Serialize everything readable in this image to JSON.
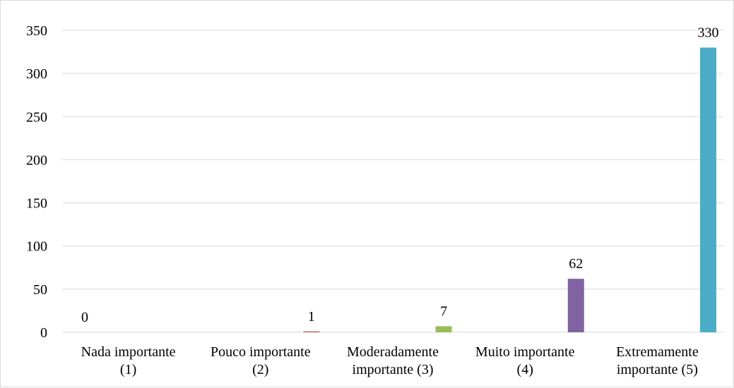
{
  "chart_data": {
    "type": "bar",
    "categories": [
      [
        "Nada importante",
        "(1)"
      ],
      [
        "Pouco importante",
        "(2)"
      ],
      [
        "Moderadamente",
        "importante (3)"
      ],
      [
        "Muito importante",
        "(4)"
      ],
      [
        "Extremamente",
        "importante (5)"
      ]
    ],
    "values": [
      0,
      1,
      7,
      62,
      330
    ],
    "data_labels": [
      "0",
      "1",
      "7",
      "62",
      "330"
    ],
    "bar_colors": [
      "#4f81bd",
      "#c0504d",
      "#9bbb59",
      "#8064a2",
      "#4bacc6"
    ],
    "ylim": [
      0,
      350
    ],
    "yticks": [
      "0",
      "50",
      "100",
      "150",
      "200",
      "250",
      "300",
      "350"
    ],
    "grid": true,
    "grid_color": "#d9d9d9",
    "legend": "none",
    "title": "",
    "xlabel": "",
    "ylabel": ""
  }
}
